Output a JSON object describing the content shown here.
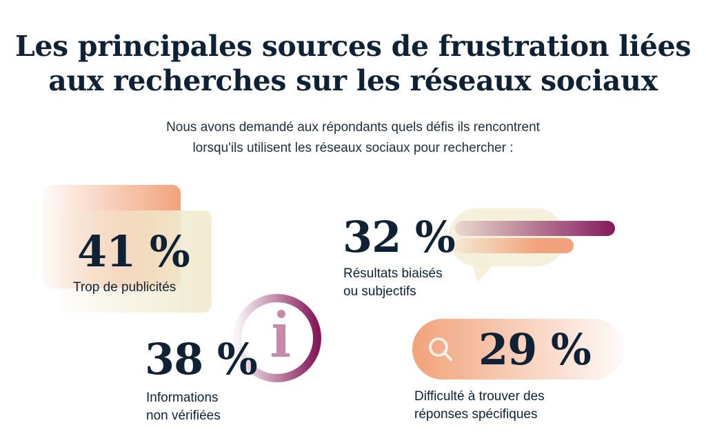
{
  "title": {
    "line1": "Les principales sources de frustration liées",
    "line2": "aux recherches sur les réseaux sociaux"
  },
  "subtitle": {
    "line1": "Nous avons demandé aux répondants quels défis ils rencontrent",
    "line2": "lorsqu'ils utilisent les réseaux sociaux pour rechercher :"
  },
  "colors": {
    "navy": "#0f2235",
    "peach": "#f2a27a",
    "cream": "#f1ecd2",
    "plum": "#84185a"
  },
  "stats": [
    {
      "value": "41 %",
      "label_line1": "Trop de publicités",
      "icon": "stacked-cards-icon"
    },
    {
      "value": "38 %",
      "label_line1": "Informations",
      "label_line2": "non vérifiées",
      "icon": "info-icon"
    },
    {
      "value": "32 %",
      "label_line1": "Résultats biaisés",
      "label_line2": "ou subjectifs",
      "icon": "speech-bubble-icon"
    },
    {
      "value": "29 %",
      "label_line1": "Difficulté à trouver des",
      "label_line2": "réponses spécifiques",
      "icon": "search-icon"
    }
  ]
}
